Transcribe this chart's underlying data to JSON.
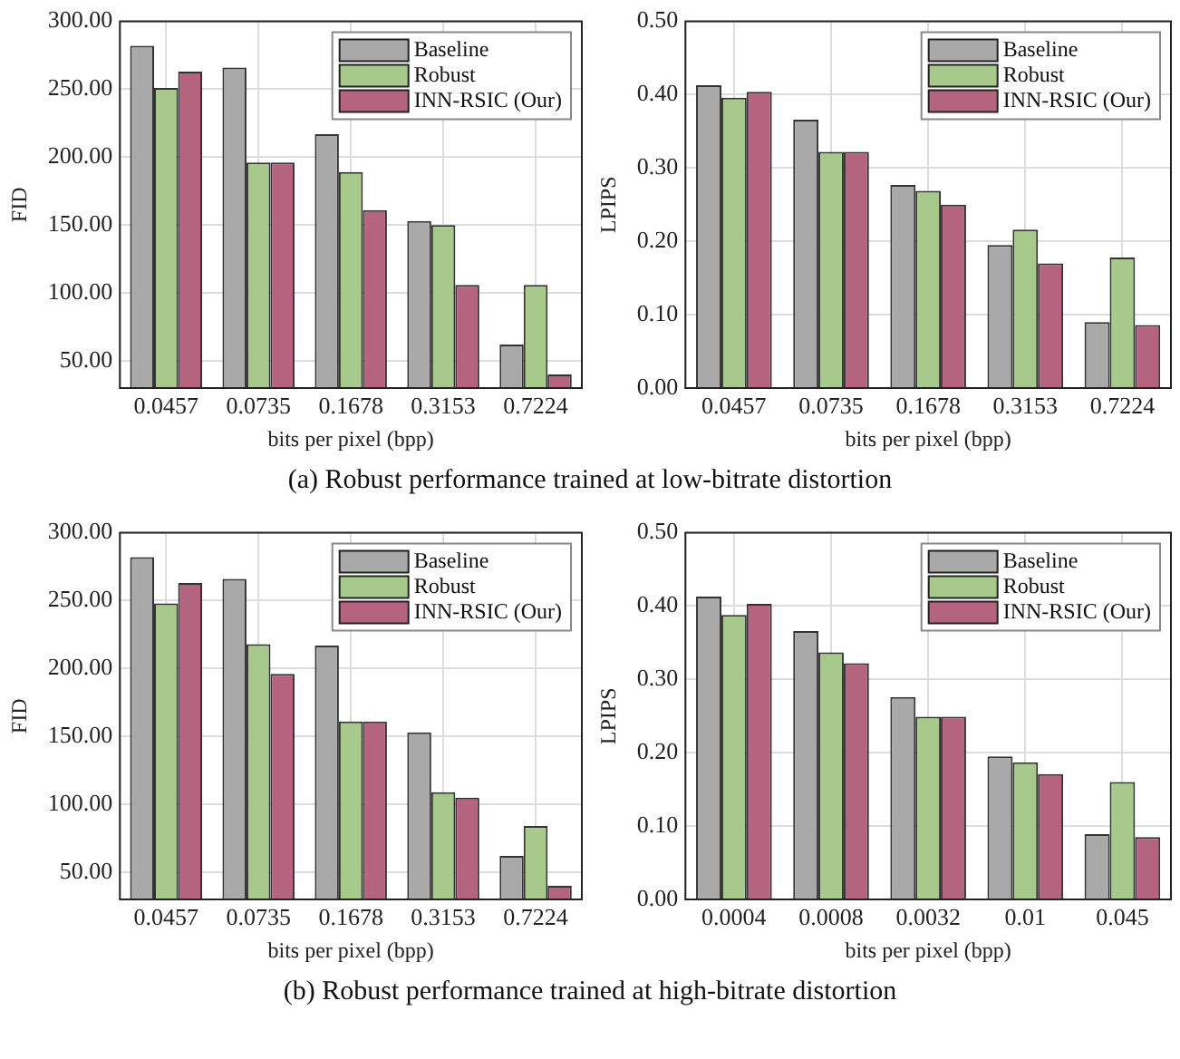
{
  "chart_data": [
    {
      "type": "bar",
      "xlabel": "bits per pixel (bpp)",
      "ylabel": "FID",
      "categories": [
        "0.0457",
        "0.0735",
        "0.1678",
        "0.3153",
        "0.7224"
      ],
      "series": [
        {
          "name": "Baseline",
          "color": "#a9a9a9",
          "values": [
            282,
            266,
            217,
            153,
            62
          ]
        },
        {
          "name": "Robust",
          "color": "#a8c98c",
          "values": [
            251,
            196,
            189,
            150,
            106
          ]
        },
        {
          "name": "INN-RSIC (Our)",
          "color": "#b5647f",
          "values": [
            263,
            196,
            161,
            106,
            40
          ]
        }
      ],
      "ylim": [
        30,
        300
      ],
      "yticks": [
        {
          "value": 50,
          "label": "50.00"
        },
        {
          "value": 100,
          "label": "100.00"
        },
        {
          "value": 150,
          "label": "150.00"
        },
        {
          "value": 200,
          "label": "200.00"
        },
        {
          "value": 250,
          "label": "250.00"
        },
        {
          "value": 300,
          "label": "300.00"
        }
      ],
      "grid": true,
      "legend": "top right",
      "annotations": [
        "(a) Robust performance trained at low-bitrate distortion"
      ]
    },
    {
      "type": "bar",
      "xlabel": "bits per pixel (bpp)",
      "ylabel": "LPIPS",
      "categories": [
        "0.0457",
        "0.0735",
        "0.1678",
        "0.3153",
        "0.7224"
      ],
      "series": [
        {
          "name": "Baseline",
          "color": "#a9a9a9",
          "values": [
            0.413,
            0.366,
            0.277,
            0.195,
            0.09
          ]
        },
        {
          "name": "Robust",
          "color": "#a8c98c",
          "values": [
            0.396,
            0.322,
            0.269,
            0.216,
            0.178
          ]
        },
        {
          "name": "INN-RSIC (Our)",
          "color": "#b5647f",
          "values": [
            0.404,
            0.322,
            0.25,
            0.17,
            0.086
          ]
        }
      ],
      "ylim": [
        0,
        0.5
      ],
      "yticks": [
        {
          "value": 0,
          "label": "0.00"
        },
        {
          "value": 0.1,
          "label": "0.10"
        },
        {
          "value": 0.2,
          "label": "0.20"
        },
        {
          "value": 0.3,
          "label": "0.30"
        },
        {
          "value": 0.4,
          "label": "0.40"
        },
        {
          "value": 0.5,
          "label": "0.50"
        }
      ],
      "grid": true,
      "legend": "top right"
    },
    {
      "type": "bar",
      "xlabel": "bits per pixel (bpp)",
      "ylabel": "FID",
      "categories": [
        "0.0457",
        "0.0735",
        "0.1678",
        "0.3153",
        "0.7224"
      ],
      "series": [
        {
          "name": "Baseline",
          "color": "#a9a9a9",
          "values": [
            282,
            266,
            217,
            153,
            62
          ]
        },
        {
          "name": "Robust",
          "color": "#a8c98c",
          "values": [
            248,
            218,
            161,
            109,
            84
          ]
        },
        {
          "name": "INN-RSIC (Our)",
          "color": "#b5647f",
          "values": [
            263,
            196,
            161,
            105,
            40
          ]
        }
      ],
      "ylim": [
        30,
        300
      ],
      "yticks": [
        {
          "value": 50,
          "label": "50.00"
        },
        {
          "value": 100,
          "label": "100.00"
        },
        {
          "value": 150,
          "label": "150.00"
        },
        {
          "value": 200,
          "label": "200.00"
        },
        {
          "value": 250,
          "label": "250.00"
        },
        {
          "value": 300,
          "label": "300.00"
        }
      ],
      "grid": true,
      "legend": "top right",
      "annotations": [
        "(b) Robust performance trained at high-bitrate distortion"
      ]
    },
    {
      "type": "bar",
      "xlabel": "bits per pixel (bpp)",
      "ylabel": "LPIPS",
      "categories": [
        "0.0004",
        "0.0008",
        "0.0032",
        "0.01",
        "0.045"
      ],
      "series": [
        {
          "name": "Baseline",
          "color": "#a9a9a9",
          "values": [
            0.413,
            0.366,
            0.276,
            0.195,
            0.089
          ]
        },
        {
          "name": "Robust",
          "color": "#a8c98c",
          "values": [
            0.388,
            0.337,
            0.249,
            0.187,
            0.16
          ]
        },
        {
          "name": "INN-RSIC (Our)",
          "color": "#b5647f",
          "values": [
            0.403,
            0.322,
            0.249,
            0.171,
            0.085
          ]
        }
      ],
      "ylim": [
        0,
        0.5
      ],
      "yticks": [
        {
          "value": 0,
          "label": "0.00"
        },
        {
          "value": 0.1,
          "label": "0.10"
        },
        {
          "value": 0.2,
          "label": "0.20"
        },
        {
          "value": 0.3,
          "label": "0.30"
        },
        {
          "value": 0.4,
          "label": "0.40"
        },
        {
          "value": 0.5,
          "label": "0.50"
        }
      ],
      "grid": true,
      "legend": "top right"
    }
  ]
}
